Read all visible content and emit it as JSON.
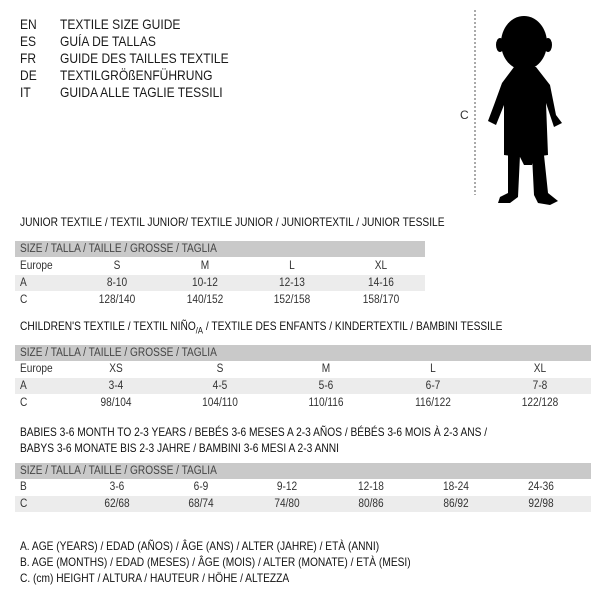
{
  "header": [
    {
      "code": "EN",
      "text": "TEXTILE SIZE GUIDE"
    },
    {
      "code": "ES",
      "text": "GUÍA DE TALLAS"
    },
    {
      "code": "FR",
      "text": "GUIDE DES TAILLES TEXTILE"
    },
    {
      "code": "DE",
      "text": "TEXTILGRÖßENFÜHRUNG"
    },
    {
      "code": "IT",
      "text": "GUIDA ALLE TAGLIE TESSILI"
    }
  ],
  "figure": {
    "label": "C",
    "icon": "child-silhouette"
  },
  "size_header": "SIZE / TALLA / TAILLE / GRÖSSE / TAGLIA",
  "junior": {
    "title": "JUNIOR TEXTILE / TEXTIL JUNIOR/ TEXTILE JUNIOR / JUNIORTEXTIL / JUNIOR TESSILE",
    "rows": [
      {
        "label": "Europe",
        "values": [
          "S",
          "M",
          "L",
          "XL"
        ]
      },
      {
        "label": "A",
        "values": [
          "8-10",
          "10-12",
          "12-13",
          "14-16"
        ]
      },
      {
        "label": "C",
        "values": [
          "128/140",
          "140/152",
          "152/158",
          "158/170"
        ]
      }
    ]
  },
  "children": {
    "title": "CHILDREN'S TEXTILE / TEXTIL NIÑO",
    "title_sub": "/A",
    "title_rest": " / TEXTILE DES ENFANTS / KINDERTEXTIL / BAMBINI TESSILE",
    "rows": [
      {
        "label": "Europe",
        "values": [
          "XS",
          "S",
          "M",
          "L",
          "XL"
        ]
      },
      {
        "label": "A",
        "values": [
          "3-4",
          "4-5",
          "5-6",
          "6-7",
          "7-8"
        ]
      },
      {
        "label": "C",
        "values": [
          "98/104",
          "104/110",
          "110/116",
          "116/122",
          "122/128"
        ]
      }
    ]
  },
  "babies": {
    "title_line1": "BABIES 3-6 MONTH TO 2-3 YEARS / BEBÉS 3-6 MESES A 2-3 AÑOS / BÉBÉS 3-6 MOIS À 2-3 ANS /",
    "title_line2": "BABYS 3-6 MONATE BIS 2-3 JAHRE / BAMBINI 3-6 MESI A 2-3 ANNI",
    "rows": [
      {
        "label": "B",
        "values": [
          "3-6",
          "6-9",
          "9-12",
          "12-18",
          "18-24",
          "24-36"
        ]
      },
      {
        "label": "C",
        "values": [
          "62/68",
          "68/74",
          "74/80",
          "80/86",
          "86/92",
          "92/98"
        ]
      }
    ]
  },
  "legend": [
    "A. AGE (YEARS) / EDAD (AÑOS) / ÂGE (ANS) / ALTER (JAHRE) / ETÀ (ANNI)",
    "B. AGE (MONTHS) / EDAD (MESES) / ÂGE (MOIS) / ALTER (MONATE) / ETÀ (MESI)",
    "C. (cm) HEIGHT / ALTURA / HAUTEUR / HÖHE / ALTEZZA"
  ]
}
